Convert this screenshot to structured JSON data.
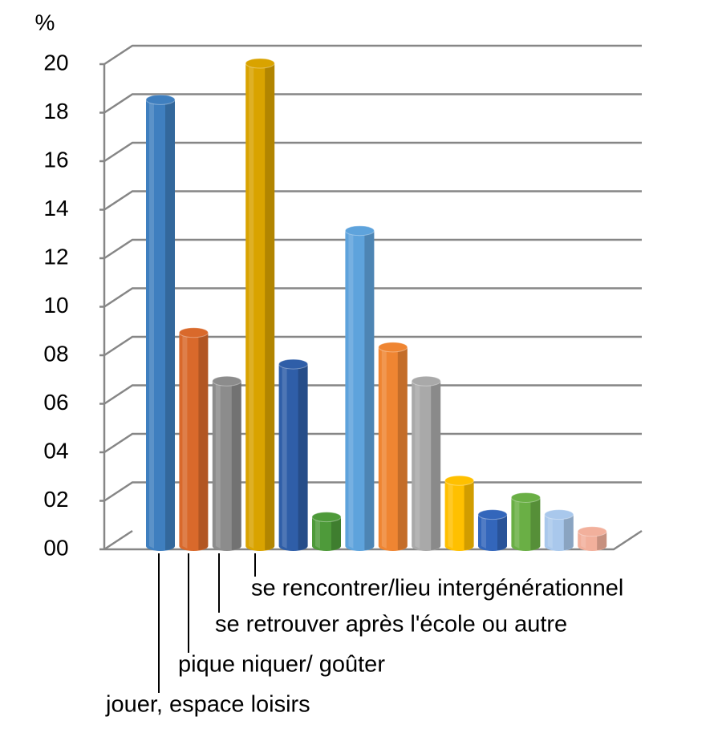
{
  "chart_data": {
    "type": "bar3d",
    "y_label": "%",
    "categories": [
      "jouer, espace loisirs",
      "pique niquer/ goûter",
      "se retrouver après l'école ou autre",
      "se rencontrer/lieu intergénérationnel",
      null,
      null,
      null,
      null,
      null,
      null,
      null,
      null,
      null,
      null
    ],
    "values": [
      18.6,
      9.0,
      7.0,
      20.1,
      7.7,
      1.4,
      13.2,
      8.4,
      7.0,
      2.9,
      1.5,
      2.2,
      1.5,
      0.8
    ],
    "colors": [
      "#3f7fbf",
      "#d9692b",
      "#8c8c8c",
      "#d9a300",
      "#2f5ea8",
      "#4e9a3a",
      "#5ea3dc",
      "#ef8532",
      "#a9a9a9",
      "#ffc000",
      "#3366bb",
      "#6aaf45",
      "#a9c8ec",
      "#f2b09c"
    ],
    "ylim": [
      0,
      20
    ],
    "yticks": [
      {
        "value": 0,
        "label": "00"
      },
      {
        "value": 2,
        "label": "02"
      },
      {
        "value": 4,
        "label": "04"
      },
      {
        "value": 6,
        "label": "06"
      },
      {
        "value": 8,
        "label": "08"
      },
      10,
      12,
      14,
      16,
      18,
      20
    ],
    "grid": true
  }
}
